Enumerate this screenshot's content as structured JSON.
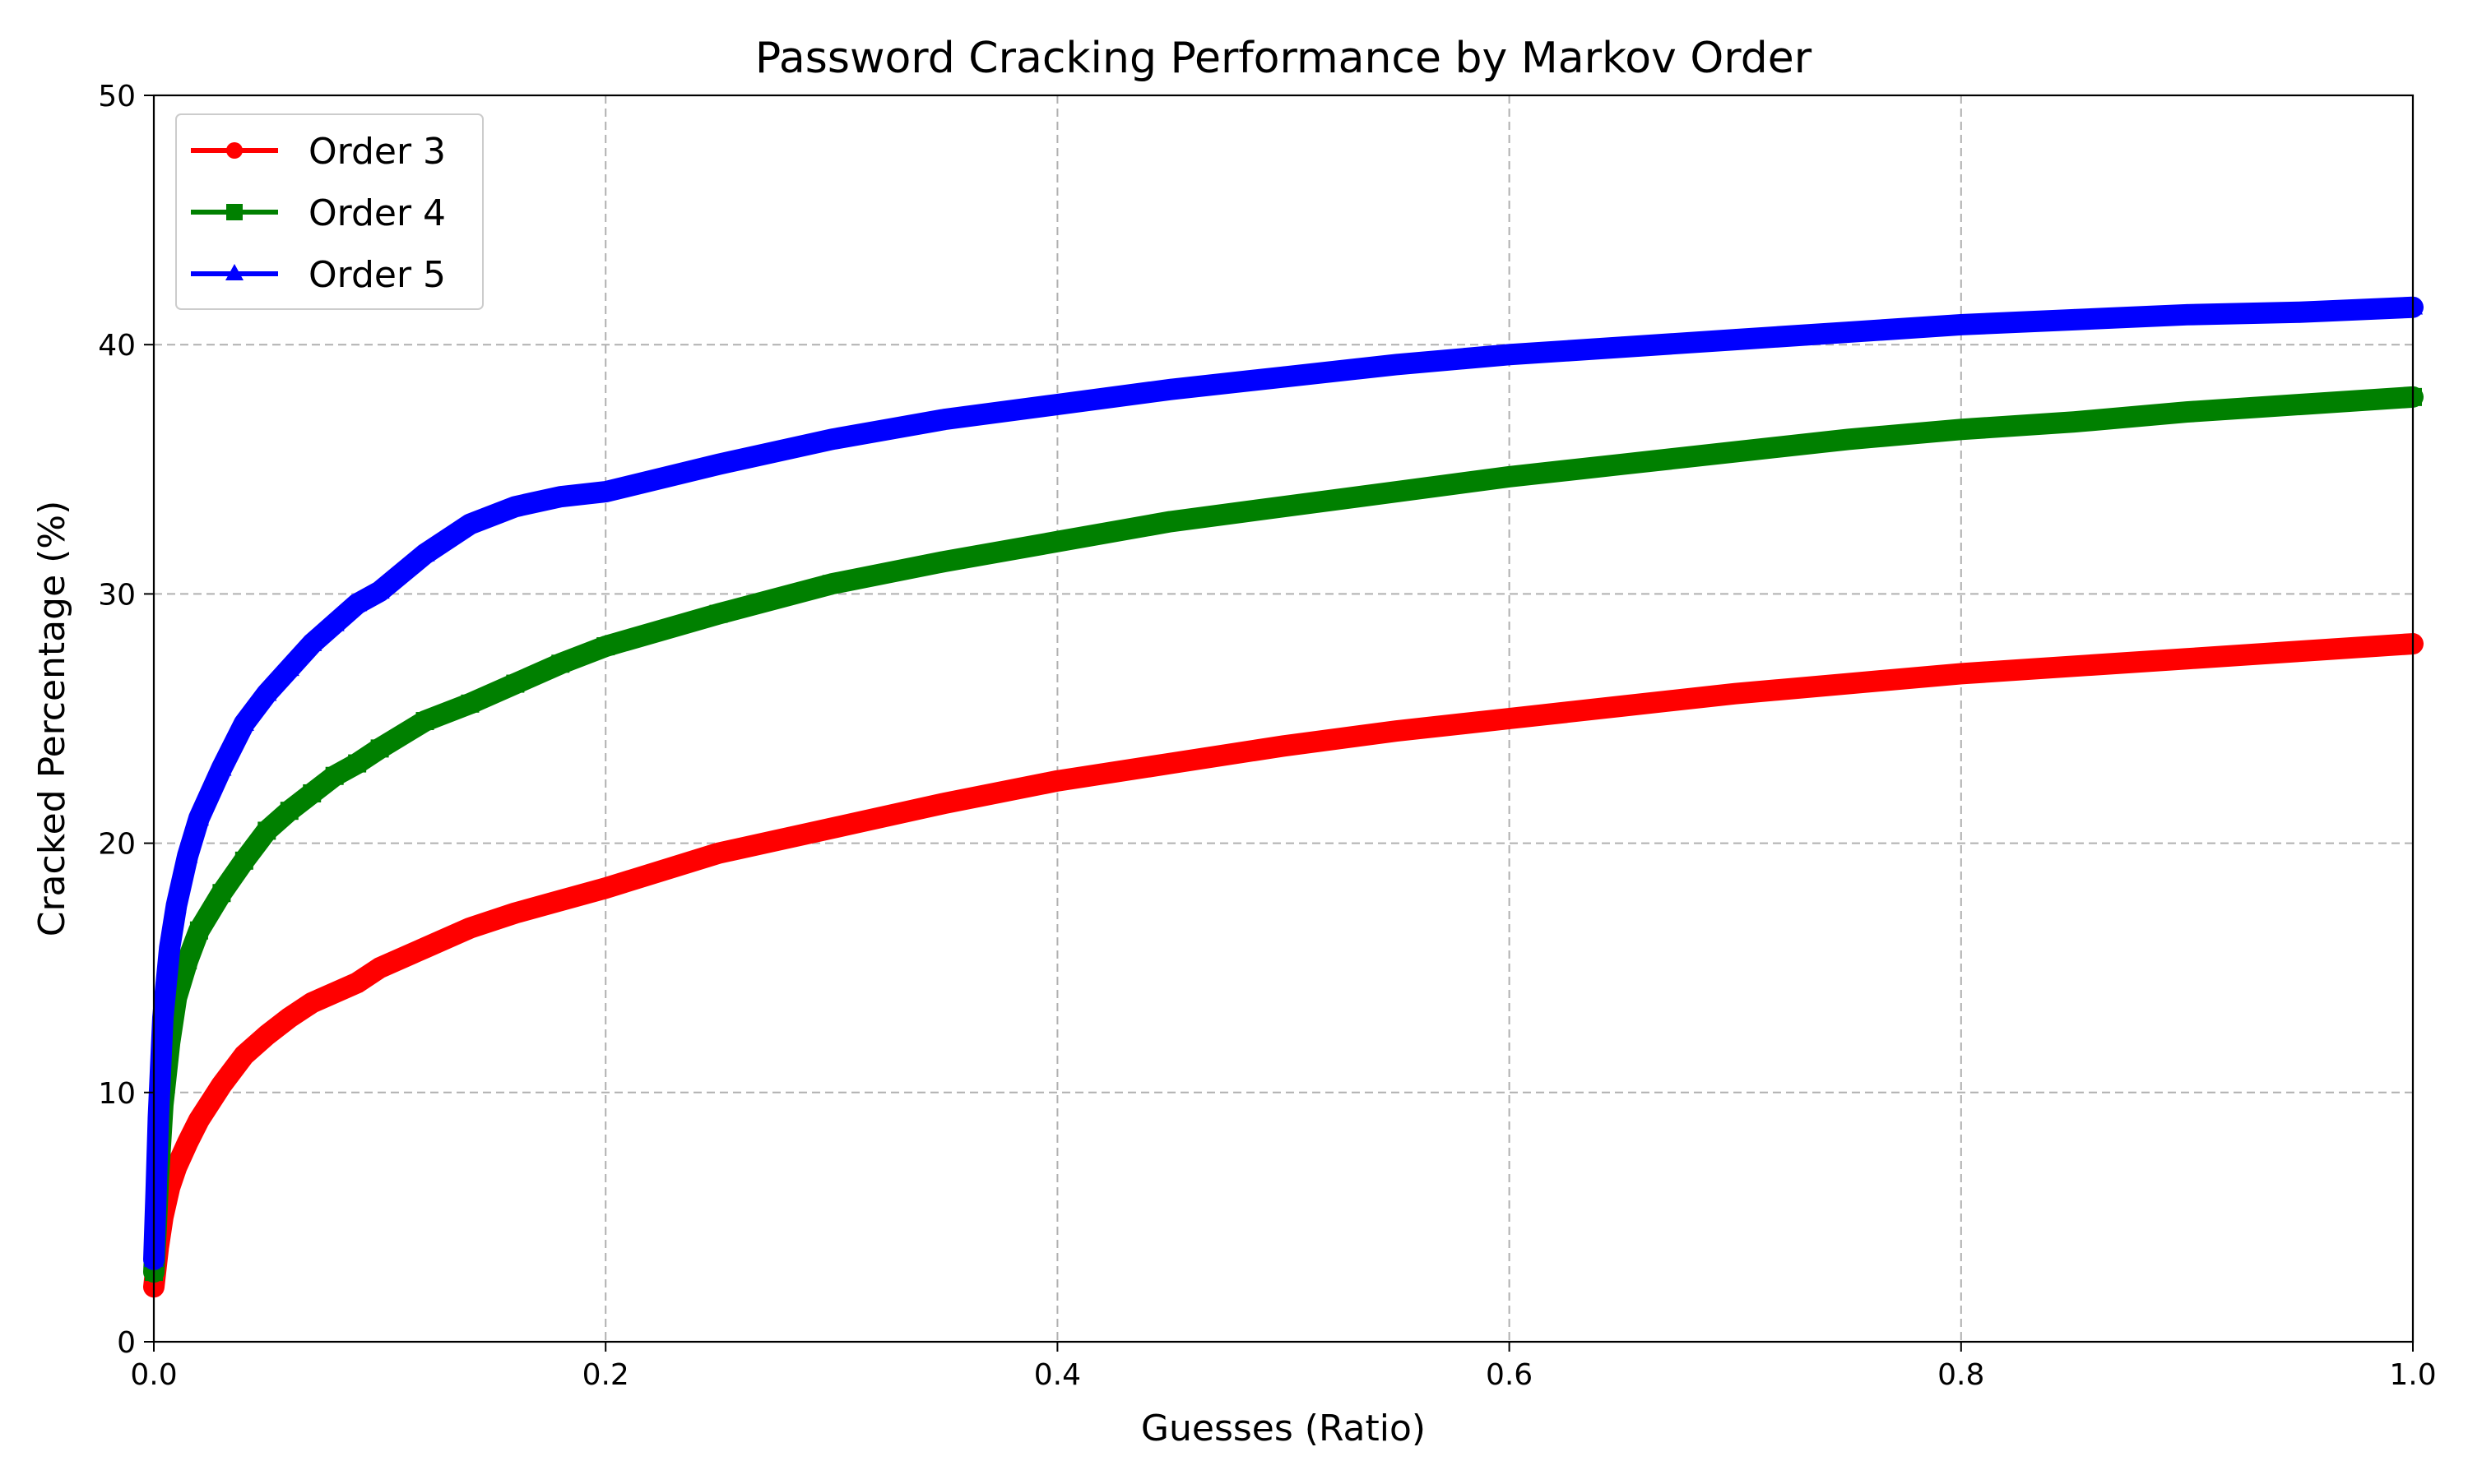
{
  "chart_data": {
    "type": "line",
    "title": "Password Cracking Performance by Markov Order",
    "xlabel": "Guesses (Ratio)",
    "ylabel": "Cracked Percentage (%)",
    "xlim": [
      0.0,
      1.0
    ],
    "ylim": [
      0,
      50
    ],
    "xticks": [
      "0.0",
      "0.2",
      "0.4",
      "0.6",
      "0.8",
      "1.0"
    ],
    "yticks": [
      "0",
      "10",
      "20",
      "30",
      "40",
      "50"
    ],
    "grid": true,
    "legend_position": "upper-left",
    "series": [
      {
        "name": "Order 3",
        "color": "#ff0000",
        "marker": "circle",
        "x": [
          0.0,
          0.001,
          0.002,
          0.004,
          0.007,
          0.01,
          0.015,
          0.02,
          0.03,
          0.04,
          0.05,
          0.06,
          0.07,
          0.08,
          0.09,
          0.1,
          0.12,
          0.14,
          0.16,
          0.18,
          0.2,
          0.25,
          0.3,
          0.35,
          0.4,
          0.45,
          0.5,
          0.55,
          0.6,
          0.65,
          0.7,
          0.75,
          0.8,
          0.85,
          0.9,
          0.95,
          1.0
        ],
        "y": [
          2.2,
          3.0,
          3.8,
          5.0,
          6.2,
          7.0,
          8.0,
          8.9,
          10.3,
          11.5,
          12.3,
          13.0,
          13.6,
          14.0,
          14.4,
          15.0,
          15.8,
          16.6,
          17.2,
          17.7,
          18.2,
          19.6,
          20.6,
          21.6,
          22.5,
          23.2,
          23.9,
          24.5,
          25.0,
          25.5,
          26.0,
          26.4,
          26.8,
          27.1,
          27.4,
          27.7,
          28.0
        ]
      },
      {
        "name": "Order 4",
        "color": "#008000",
        "marker": "square",
        "x": [
          0.0,
          0.001,
          0.002,
          0.004,
          0.007,
          0.01,
          0.015,
          0.02,
          0.03,
          0.04,
          0.05,
          0.06,
          0.07,
          0.08,
          0.09,
          0.1,
          0.12,
          0.14,
          0.16,
          0.18,
          0.2,
          0.25,
          0.3,
          0.35,
          0.4,
          0.45,
          0.5,
          0.55,
          0.6,
          0.65,
          0.7,
          0.75,
          0.8,
          0.85,
          0.9,
          0.95,
          1.0
        ],
        "y": [
          2.8,
          4.5,
          6.5,
          9.5,
          12.0,
          13.8,
          15.3,
          16.5,
          18.0,
          19.3,
          20.5,
          21.3,
          22.0,
          22.7,
          23.2,
          23.8,
          24.9,
          25.6,
          26.4,
          27.2,
          27.9,
          29.2,
          30.4,
          31.3,
          32.1,
          32.9,
          33.5,
          34.1,
          34.7,
          35.2,
          35.7,
          36.2,
          36.6,
          36.9,
          37.3,
          37.6,
          37.9
        ]
      },
      {
        "name": "Order 5",
        "color": "#0000ff",
        "marker": "triangle",
        "x": [
          0.0,
          0.001,
          0.002,
          0.004,
          0.007,
          0.01,
          0.015,
          0.02,
          0.03,
          0.04,
          0.05,
          0.06,
          0.07,
          0.08,
          0.09,
          0.1,
          0.12,
          0.14,
          0.16,
          0.18,
          0.2,
          0.25,
          0.3,
          0.35,
          0.4,
          0.45,
          0.5,
          0.55,
          0.6,
          0.65,
          0.7,
          0.75,
          0.8,
          0.85,
          0.9,
          0.95,
          1.0
        ],
        "y": [
          3.3,
          6.0,
          9.0,
          13.0,
          15.8,
          17.5,
          19.5,
          21.0,
          23.0,
          24.8,
          26.0,
          27.0,
          28.0,
          28.8,
          29.6,
          30.1,
          31.6,
          32.8,
          33.5,
          33.9,
          34.1,
          35.2,
          36.2,
          37.0,
          37.6,
          38.2,
          38.7,
          39.2,
          39.6,
          39.9,
          40.2,
          40.5,
          40.8,
          41.0,
          41.2,
          41.3,
          41.5
        ]
      }
    ]
  }
}
